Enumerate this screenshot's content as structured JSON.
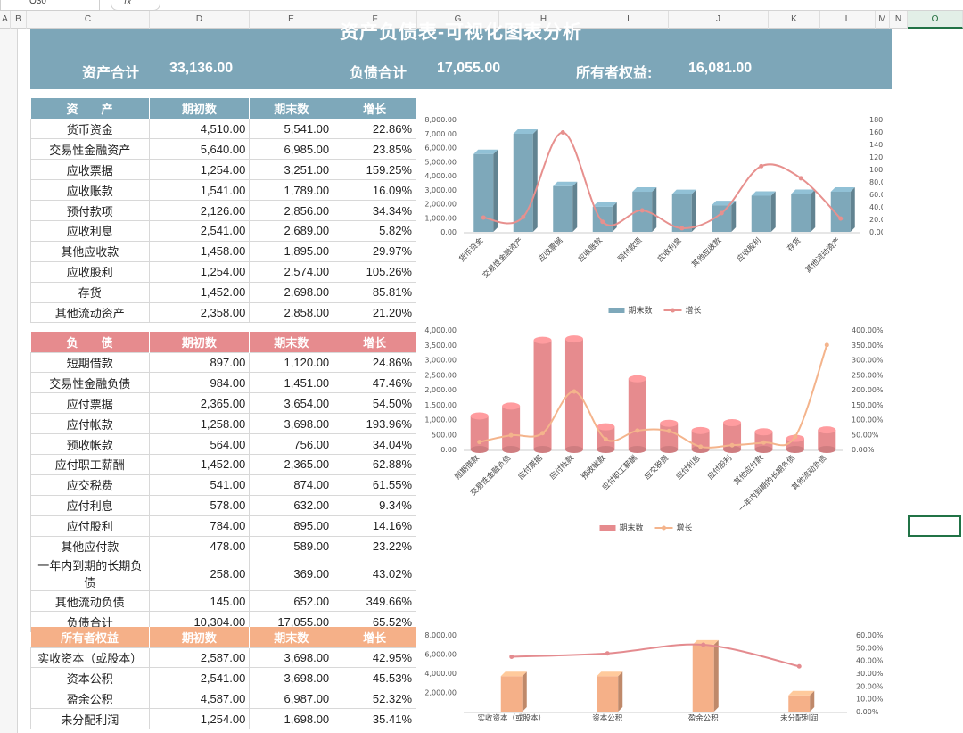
{
  "toolbar": {
    "name_box": "O30",
    "fx_label": "fx"
  },
  "columns": [
    "A",
    "B",
    "C",
    "D",
    "E",
    "F",
    "G",
    "H",
    "I",
    "J",
    "K",
    "L",
    "M",
    "N",
    "O"
  ],
  "title": "资产负债表-可视化图表分析",
  "summary": {
    "assets_label": "资产合计",
    "assets_value": "33,136.00",
    "liab_label": "负债合计",
    "liab_value": "17,055.00",
    "equity_label": "所有者权益:",
    "equity_value": "16,081.00"
  },
  "colors": {
    "asset": "#7ea8ba",
    "liability": "#e68b8e",
    "equity": "#f5b088",
    "grid": "#217346"
  },
  "assets": {
    "headers": [
      "资　　产",
      "期初数",
      "期末数",
      "增长"
    ],
    "rows": [
      [
        "货币资金",
        "4,510.00",
        "5,541.00",
        "22.86%"
      ],
      [
        "交易性金融资产",
        "5,640.00",
        "6,985.00",
        "23.85%"
      ],
      [
        "应收票据",
        "1,254.00",
        "3,251.00",
        "159.25%"
      ],
      [
        "应收账款",
        "1,541.00",
        "1,789.00",
        "16.09%"
      ],
      [
        "预付款项",
        "2,126.00",
        "2,856.00",
        "34.34%"
      ],
      [
        "应收利息",
        "2,541.00",
        "2,689.00",
        "5.82%"
      ],
      [
        "其他应收款",
        "1,458.00",
        "1,895.00",
        "29.97%"
      ],
      [
        "应收股利",
        "1,254.00",
        "2,574.00",
        "105.26%"
      ],
      [
        "存货",
        "1,452.00",
        "2,698.00",
        "85.81%"
      ],
      [
        "其他流动资产",
        "2,358.00",
        "2,858.00",
        "21.20%"
      ]
    ]
  },
  "liabilities": {
    "headers": [
      "负　　债",
      "期初数",
      "期末数",
      "增长"
    ],
    "rows": [
      [
        "短期借款",
        "897.00",
        "1,120.00",
        "24.86%"
      ],
      [
        "交易性金融负债",
        "984.00",
        "1,451.00",
        "47.46%"
      ],
      [
        "应付票据",
        "2,365.00",
        "3,654.00",
        "54.50%"
      ],
      [
        "应付帐款",
        "1,258.00",
        "3,698.00",
        "193.96%"
      ],
      [
        "预收帐款",
        "564.00",
        "756.00",
        "34.04%"
      ],
      [
        "应付职工薪酬",
        "1,452.00",
        "2,365.00",
        "62.88%"
      ],
      [
        "应交税费",
        "541.00",
        "874.00",
        "61.55%"
      ],
      [
        "应付利息",
        "578.00",
        "632.00",
        "9.34%"
      ],
      [
        "应付股利",
        "784.00",
        "895.00",
        "14.16%"
      ],
      [
        "其他应付款",
        "478.00",
        "589.00",
        "23.22%"
      ],
      [
        "一年内到期的长期负债",
        "258.00",
        "369.00",
        "43.02%"
      ],
      [
        "其他流动负债",
        "145.00",
        "652.00",
        "349.66%"
      ],
      [
        "负债合计",
        "10,304.00",
        "17,055.00",
        "65.52%"
      ]
    ]
  },
  "equity": {
    "headers": [
      "所有者权益",
      "期初数",
      "期末数",
      "增长"
    ],
    "rows": [
      [
        "实收资本（或股本）",
        "2,587.00",
        "3,698.00",
        "42.95%"
      ],
      [
        "资本公积",
        "2,541.00",
        "3,698.00",
        "45.53%"
      ],
      [
        "盈余公积",
        "4,587.00",
        "6,987.00",
        "52.32%"
      ],
      [
        "未分配利润",
        "1,254.00",
        "1,698.00",
        "35.41%"
      ]
    ]
  },
  "chart_data": [
    {
      "type": "bar",
      "categories": [
        "货币资金",
        "交易性金融资产",
        "应收票据",
        "应收账款",
        "预付款项",
        "应收利息",
        "其他应收款",
        "应收股利",
        "存货",
        "其他流动资产"
      ],
      "series": [
        {
          "name": "期末数",
          "values": [
            5541,
            6985,
            3251,
            1789,
            2856,
            2689,
            1895,
            2574,
            2698,
            2858
          ]
        },
        {
          "name": "增长",
          "values": [
            22.86,
            23.85,
            159.25,
            16.09,
            34.34,
            5.82,
            29.97,
            105.26,
            85.81,
            21.2
          ]
        }
      ],
      "ylim": [
        0,
        8000
      ],
      "y2lim": [
        0,
        180
      ],
      "yticks": [
        "0.00",
        "1,000.00",
        "2,000.00",
        "3,000.00",
        "4,000.00",
        "5,000.00",
        "6,000.00",
        "7,000.00",
        "8,000.00"
      ],
      "y2ticks": [
        "0.00%",
        "20.00%",
        "40.00%",
        "60.00%",
        "80.00%",
        "100.00%",
        "120.00%",
        "140.00%",
        "160.00%",
        "180.00%"
      ]
    },
    {
      "type": "bar",
      "categories": [
        "短期借款",
        "交易性金融负债",
        "应付票据",
        "应付帐款",
        "预收帐款",
        "应付职工薪酬",
        "应交税费",
        "应付利息",
        "应付股利",
        "其他应付款",
        "一年内到期的长期负债",
        "其他流动负债"
      ],
      "series": [
        {
          "name": "期末数",
          "values": [
            1120,
            1451,
            3654,
            3698,
            756,
            2365,
            874,
            632,
            895,
            589,
            369,
            652
          ]
        },
        {
          "name": "增长",
          "values": [
            24.86,
            47.46,
            54.5,
            193.96,
            34.04,
            62.88,
            61.55,
            9.34,
            14.16,
            23.22,
            43.02,
            349.66
          ]
        }
      ],
      "ylim": [
        0,
        4000
      ],
      "y2lim": [
        0,
        400
      ],
      "yticks": [
        "0.00",
        "500.00",
        "1,000.00",
        "1,500.00",
        "2,000.00",
        "2,500.00",
        "3,000.00",
        "3,500.00",
        "4,000.00"
      ],
      "y2ticks": [
        "0.00%",
        "50.00%",
        "100.00%",
        "150.00%",
        "200.00%",
        "250.00%",
        "300.00%",
        "350.00%",
        "400.00%"
      ]
    },
    {
      "type": "bar",
      "categories": [
        "实收资本（或股本）",
        "资本公积",
        "盈余公积",
        "未分配利润"
      ],
      "series": [
        {
          "name": "期末数",
          "values": [
            3698,
            3698,
            6987,
            1698
          ]
        },
        {
          "name": "增长",
          "values": [
            42.95,
            45.53,
            52.32,
            35.41
          ]
        }
      ],
      "ylim": [
        0,
        8000
      ],
      "y2lim": [
        0,
        60
      ],
      "yticks": [
        "",
        "2,000.00",
        "4,000.00",
        "6,000.00",
        "8,000.00"
      ],
      "y2ticks": [
        "0.00%",
        "10.00%",
        "20.00%",
        "30.00%",
        "40.00%",
        "50.00%",
        "60.00%"
      ]
    }
  ]
}
